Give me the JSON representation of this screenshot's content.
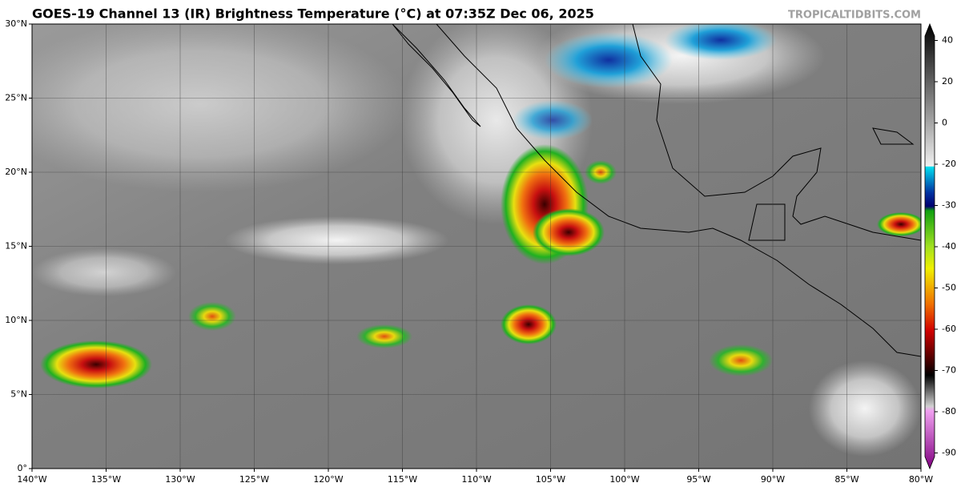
{
  "header": {
    "title": "GOES-19 Channel 13 (IR) Brightness Temperature (°C) at 07:35Z Dec 06, 2025",
    "source": "TROPICALTIDBITS.COM"
  },
  "map": {
    "longitude_labels": [
      "140°W",
      "135°W",
      "130°W",
      "125°W",
      "120°W",
      "115°W",
      "110°W",
      "105°W",
      "100°W",
      "95°W",
      "90°W",
      "85°W",
      "80°W"
    ],
    "latitude_labels": [
      "0°",
      "5°N",
      "10°N",
      "15°N",
      "20°N",
      "25°N",
      "30°N"
    ]
  },
  "colorbar": {
    "ticks": [
      40,
      20,
      0,
      -20,
      -30,
      -40,
      -50,
      -60,
      -70,
      -80,
      -90
    ]
  }
}
